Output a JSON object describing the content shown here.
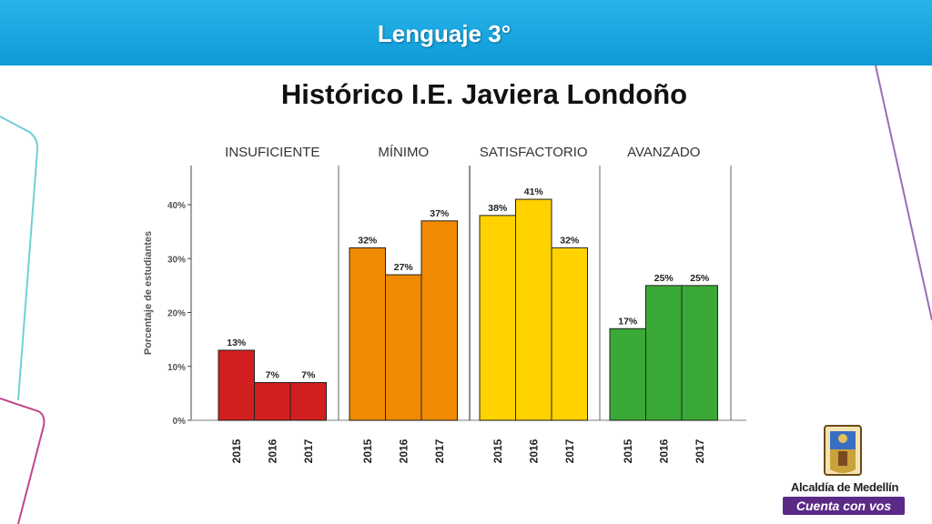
{
  "header": {
    "title": "Lenguaje 3°"
  },
  "page": {
    "title": "Histórico I.E. Javiera Londoño"
  },
  "logo": {
    "line1": "Alcaldía de Medellín",
    "line2": "Cuenta con vos"
  },
  "colors": {
    "header": "#1aa7e2",
    "insuficiente": "#d11f1f",
    "minimo": "#f08a00",
    "satisfactorio": "#ffd200",
    "avanzado": "#3aa935"
  },
  "chart_data": {
    "type": "bar",
    "ylabel": "Porcentaje de estudiantes",
    "ylim": [
      0,
      45
    ],
    "yticks": [
      0,
      10,
      20,
      30,
      40
    ],
    "ytick_labels": [
      "0%",
      "10%",
      "20%",
      "30%",
      "40%"
    ],
    "grid": false,
    "groups": [
      {
        "name": "INSUFICIENTE",
        "color": "#d11f1f",
        "categories": [
          "2015",
          "2016",
          "2017"
        ],
        "values": [
          13,
          7,
          7
        ],
        "labels": [
          "13%",
          "7%",
          "7%"
        ]
      },
      {
        "name": "MÍNIMO",
        "color": "#f08a00",
        "categories": [
          "2015",
          "2016",
          "2017"
        ],
        "values": [
          32,
          27,
          37
        ],
        "labels": [
          "32%",
          "27%",
          "37%"
        ]
      },
      {
        "name": "SATISFACTORIO",
        "color": "#ffd200",
        "categories": [
          "2015",
          "2016",
          "2017"
        ],
        "values": [
          38,
          41,
          32
        ],
        "labels": [
          "38%",
          "41%",
          "32%"
        ]
      },
      {
        "name": "AVANZADO",
        "color": "#3aa935",
        "categories": [
          "2015",
          "2016",
          "2017"
        ],
        "values": [
          17,
          25,
          25
        ],
        "labels": [
          "17%",
          "25%",
          "25%"
        ]
      }
    ]
  }
}
